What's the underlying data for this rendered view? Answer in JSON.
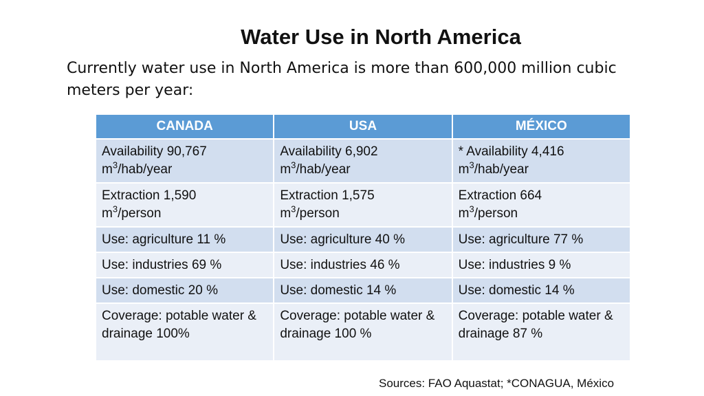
{
  "title": "Water Use in North America",
  "subtitle": "Currently water use in North America is more than 600,000 million cubic meters per year:",
  "table": {
    "header": [
      "CANADA",
      "USA",
      "MÉXICO"
    ],
    "rows": [
      [
        {
          "label": "Availability 90,767",
          "unit": "m",
          "exp": "3",
          "per": "/hab/year"
        },
        {
          "label": "Availability 6,902",
          "unit": "m",
          "exp": "3",
          "per": "/hab/year"
        },
        {
          "label": "* Availability 4,416",
          "unit": "m",
          "exp": "3",
          "per": "/hab/year"
        }
      ],
      [
        {
          "label": "Extraction 1,590",
          "unit": "m",
          "exp": "3",
          "per": "/person"
        },
        {
          "label": "Extraction 1,575",
          "unit": "m",
          "exp": "3",
          "per": "/person"
        },
        {
          "label": "Extraction 664",
          "unit": "m",
          "exp": "3",
          "per": "/person"
        }
      ],
      [
        "Use: agriculture 11 %",
        "Use: agriculture 40 %",
        "Use: agriculture 77 %"
      ],
      [
        "Use: industries 69 %",
        "Use: industries 46 %",
        "Use: industries 9 %"
      ],
      [
        "Use: domestic 20 %",
        "Use: domestic 14 %",
        "Use: domestic 14 %"
      ],
      [
        "Coverage: potable water & drainage 100%",
        "Coverage: potable water & drainage  100 %",
        "Coverage: potable water & drainage  87 %"
      ]
    ]
  },
  "source": "Sources: FAO Aquastat;  *CONAGUA, México"
}
